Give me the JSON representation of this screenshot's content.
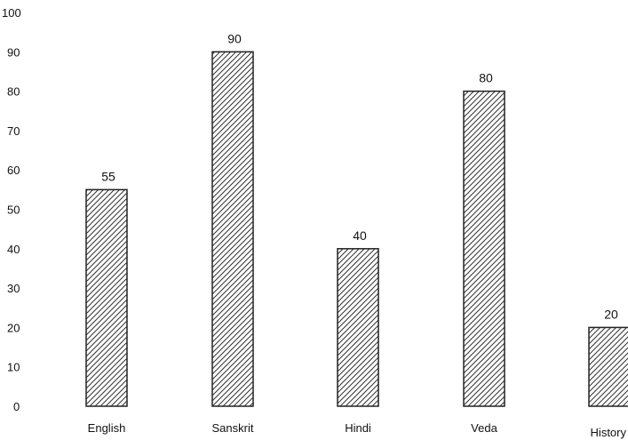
{
  "chart_data": {
    "type": "bar",
    "title": "",
    "xlabel": "",
    "ylabel": "",
    "categories": [
      "English",
      "Sanskrit",
      "Hindi",
      "Veda",
      "History"
    ],
    "values": [
      55,
      90,
      40,
      80,
      20
    ],
    "data_labels": [
      "55",
      "90",
      "40",
      "80",
      "20"
    ],
    "ylim": [
      0,
      100
    ],
    "yticks": [
      "0",
      "10",
      "20",
      "30",
      "40",
      "50",
      "60",
      "70",
      "80",
      "90",
      "100"
    ],
    "grid": false,
    "legend": "none",
    "bar_fill": "hatched",
    "colors": {
      "bar_stroke": "#222222",
      "hatch": "#333333",
      "text": "#111111"
    }
  }
}
